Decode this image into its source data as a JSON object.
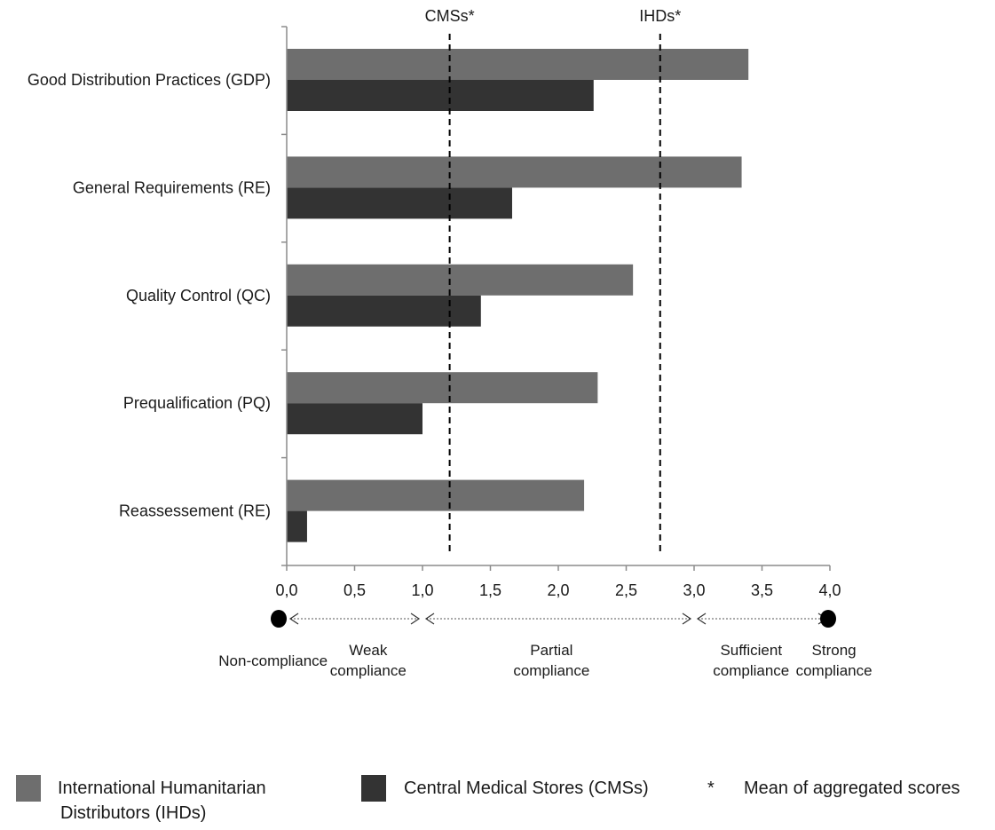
{
  "chart_data": {
    "type": "bar",
    "orientation": "horizontal",
    "categories": [
      "Good Distribution Practices (GDP)",
      "General Requirements (RE)",
      "Quality Control (QC)",
      "Prequalification (PQ)",
      "Reassessement (RE)"
    ],
    "series": [
      {
        "name": "International Humanitarian Distributors (IHDs)",
        "name_lines": [
          "International Humanitarian",
          "Distributors (IHDs)"
        ],
        "color": "#6e6e6e",
        "values": [
          3.4,
          3.35,
          2.55,
          2.29,
          2.19
        ]
      },
      {
        "name": "Central Medical Stores (CMSs)",
        "color": "#333333",
        "values": [
          2.26,
          1.66,
          1.43,
          1.0,
          0.15
        ]
      }
    ],
    "xlim": [
      0,
      4
    ],
    "x_ticks": [
      "0,0",
      "0,5",
      "1,0",
      "1,5",
      "2,0",
      "2,5",
      "3,0",
      "3,5",
      "4,0"
    ],
    "x_tick_values": [
      0,
      0.5,
      1,
      1.5,
      2,
      2.5,
      3,
      3.5,
      4
    ],
    "reference_lines": [
      {
        "label": "CMSs*",
        "value": 1.2
      },
      {
        "label": "IHDs*",
        "value": 2.75
      }
    ],
    "compliance_scale": {
      "marker_points": [
        0,
        4
      ],
      "arrow_breaks": [
        0,
        1,
        3,
        4
      ],
      "labels": [
        {
          "lines": [
            "Non-compliance"
          ],
          "value": -0.1,
          "row": 2
        },
        {
          "lines": [
            "Weak",
            "compliance"
          ],
          "value": 0.6,
          "row": 1
        },
        {
          "lines": [
            "Partial",
            "compliance"
          ],
          "value": 1.95,
          "row": 1
        },
        {
          "lines": [
            "Sufficient",
            "compliance"
          ],
          "value": 3.42,
          "row": 1
        },
        {
          "lines": [
            "Strong",
            "compliance"
          ],
          "value": 4.03,
          "row": 1
        }
      ]
    },
    "legend": {
      "placement": "bottom",
      "note_symbol": "*",
      "note_text": "Mean of aggregated scores"
    },
    "grid": false
  }
}
